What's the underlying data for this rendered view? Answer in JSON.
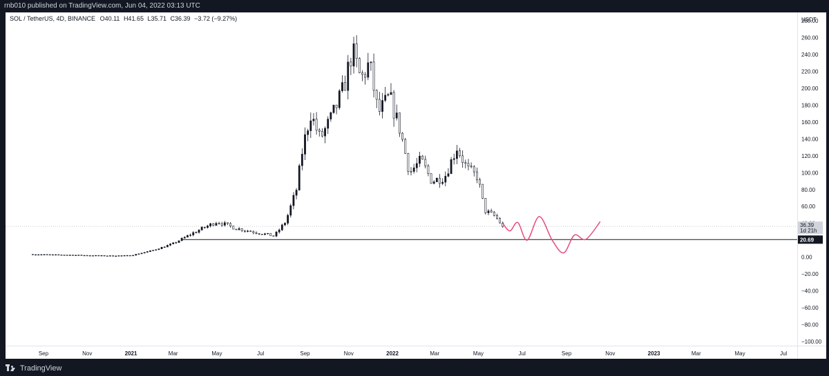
{
  "header": {
    "published_text": "rnb010 published on TradingView.com, Jun 04, 2022 03:13 UTC"
  },
  "footer": {
    "brand": "TradingView",
    "logo_icon": "tradingview-logo-icon"
  },
  "colors": {
    "background_dark": "#131722",
    "chart_bg": "#ffffff",
    "candle": "#131722",
    "candle_down_fill": "#ffffff",
    "projection": "#e84a7f",
    "support_line": "#131722",
    "price_line": "#c8c8c8",
    "badge_current_bg": "#d1d4dc",
    "badge_level_bg": "#131722"
  },
  "chart_data": {
    "type": "candlestick",
    "legend": {
      "symbol": "SOL / TetherUS, 4D, BINANCE",
      "open": "O40.11",
      "high": "H41.65",
      "low": "L35.71",
      "close": "C36.39",
      "change": "−3.72 (−9.27%)"
    },
    "currency_label": "USDT",
    "ylim": [
      -105,
      290
    ],
    "y_ticks": [
      280,
      260,
      240,
      220,
      200,
      180,
      160,
      140,
      120,
      100,
      80,
      60,
      40,
      20,
      0,
      -20,
      -40,
      -60,
      -80,
      -100
    ],
    "y_tick_labels": [
      "280.00",
      "260.00",
      "240.00",
      "220.00",
      "200.00",
      "180.00",
      "160.00",
      "140.00",
      "120.00",
      "100.00",
      "80.00",
      "60.00",
      "40.00",
      "20.00",
      "0.00",
      "−20.00",
      "−40.00",
      "−60.00",
      "−80.00",
      "−100.00"
    ],
    "x_range": [
      "2020-07-10",
      "2023-07-20"
    ],
    "x_ticks": [
      {
        "label": "Sep",
        "date": "2020-09-01",
        "bold": false
      },
      {
        "label": "Nov",
        "date": "2020-11-01",
        "bold": false
      },
      {
        "label": "2021",
        "date": "2021-01-01",
        "bold": true
      },
      {
        "label": "Mar",
        "date": "2021-03-01",
        "bold": false
      },
      {
        "label": "May",
        "date": "2021-05-01",
        "bold": false
      },
      {
        "label": "Jul",
        "date": "2021-07-01",
        "bold": false
      },
      {
        "label": "Sep",
        "date": "2021-09-01",
        "bold": false
      },
      {
        "label": "Nov",
        "date": "2021-11-01",
        "bold": false
      },
      {
        "label": "2022",
        "date": "2022-01-01",
        "bold": true
      },
      {
        "label": "Mar",
        "date": "2022-03-01",
        "bold": false
      },
      {
        "label": "May",
        "date": "2022-05-01",
        "bold": false
      },
      {
        "label": "Jul",
        "date": "2022-07-01",
        "bold": false
      },
      {
        "label": "Sep",
        "date": "2022-09-01",
        "bold": false
      },
      {
        "label": "Nov",
        "date": "2022-11-01",
        "bold": false
      },
      {
        "label": "2023",
        "date": "2023-01-01",
        "bold": true
      },
      {
        "label": "Mar",
        "date": "2023-03-01",
        "bold": false
      },
      {
        "label": "May",
        "date": "2023-05-01",
        "bold": false
      },
      {
        "label": "Jul",
        "date": "2023-07-01",
        "bold": false
      }
    ],
    "current_price": {
      "value": 36.39,
      "label": "36.39",
      "countdown": "1d 21h"
    },
    "support_level": {
      "value": 20.69,
      "label": "20.69",
      "start_date": "2021-03-13"
    },
    "key_points": [
      {
        "date": "2020-08-13",
        "close": 3.2
      },
      {
        "date": "2020-10-01",
        "close": 2.5
      },
      {
        "date": "2020-12-01",
        "close": 1.5
      },
      {
        "date": "2021-01-01",
        "close": 1.8
      },
      {
        "date": "2021-02-01",
        "close": 8
      },
      {
        "date": "2021-03-01",
        "close": 16
      },
      {
        "date": "2021-04-01",
        "close": 30
      },
      {
        "date": "2021-05-01",
        "close": 42
      },
      {
        "date": "2021-05-28",
        "close": 34
      },
      {
        "date": "2021-06-20",
        "close": 30
      },
      {
        "date": "2021-07-20",
        "close": 25
      },
      {
        "date": "2021-08-05",
        "close": 42
      },
      {
        "date": "2021-08-20",
        "close": 80
      },
      {
        "date": "2021-08-29",
        "close": 130
      },
      {
        "date": "2021-09-09",
        "close": 170
      },
      {
        "date": "2021-09-22",
        "close": 140
      },
      {
        "date": "2021-10-08",
        "close": 165
      },
      {
        "date": "2021-10-25",
        "close": 200
      },
      {
        "date": "2021-11-06",
        "close": 245
      },
      {
        "date": "2021-11-18",
        "close": 210
      },
      {
        "date": "2021-11-30",
        "close": 230
      },
      {
        "date": "2021-12-12",
        "close": 170
      },
      {
        "date": "2021-12-28",
        "close": 190
      },
      {
        "date": "2022-01-12",
        "close": 150
      },
      {
        "date": "2022-01-25",
        "close": 100
      },
      {
        "date": "2022-02-10",
        "close": 115
      },
      {
        "date": "2022-02-25",
        "close": 90
      },
      {
        "date": "2022-03-15",
        "close": 95
      },
      {
        "date": "2022-04-01",
        "close": 130
      },
      {
        "date": "2022-04-15",
        "close": 105
      },
      {
        "date": "2022-04-30",
        "close": 95
      },
      {
        "date": "2022-05-10",
        "close": 55
      },
      {
        "date": "2022-05-25",
        "close": 48
      },
      {
        "date": "2022-06-04",
        "close": 36.39
      }
    ],
    "projection": [
      {
        "date": "2022-06-04",
        "value": 40
      },
      {
        "date": "2022-06-14",
        "value": 31
      },
      {
        "date": "2022-06-25",
        "value": 41
      },
      {
        "date": "2022-07-08",
        "value": 20
      },
      {
        "date": "2022-07-25",
        "value": 48
      },
      {
        "date": "2022-08-12",
        "value": 20
      },
      {
        "date": "2022-08-28",
        "value": 5
      },
      {
        "date": "2022-09-12",
        "value": 26
      },
      {
        "date": "2022-09-28",
        "value": 21
      },
      {
        "date": "2022-10-18",
        "value": 42
      }
    ]
  }
}
